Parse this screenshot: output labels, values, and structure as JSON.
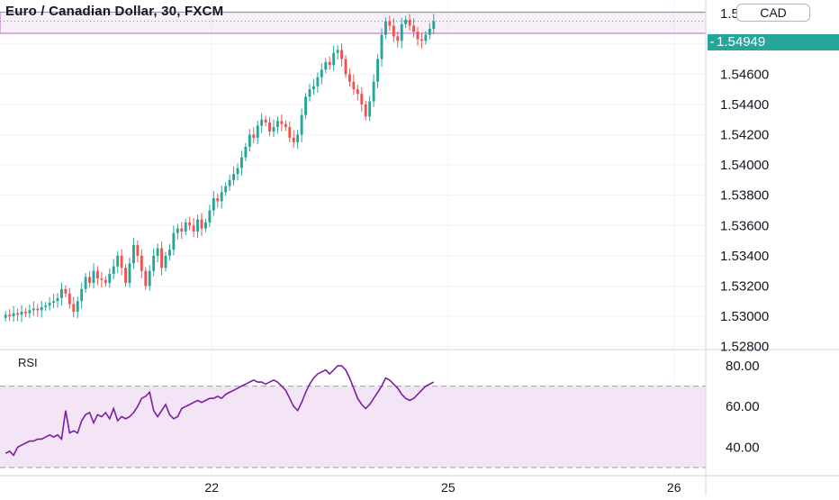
{
  "header": {
    "title": "Euro / Canadian Dollar, 30, FXCM"
  },
  "currency_badge": "CAD",
  "last_price_label": "1.54949",
  "colors": {
    "up": "#26a69a",
    "down": "#ef5350",
    "rsi_line": "#7b1fa2",
    "rsi_band": "#f3e5f5",
    "box": "#ba68c8"
  },
  "chart_data": [
    {
      "type": "candlestick",
      "title": "Euro / Canadian Dollar, 30, FXCM",
      "y_tick_labels": [
        "1.55000",
        "1.54800",
        "1.54600",
        "1.54400",
        "1.54200",
        "1.54000",
        "1.53800",
        "1.53600",
        "1.53400",
        "1.53200",
        "1.53000",
        "1.52800"
      ],
      "y_ticks": [
        1.55,
        1.548,
        1.546,
        1.544,
        1.542,
        1.54,
        1.538,
        1.536,
        1.534,
        1.532,
        1.53,
        1.528
      ],
      "ylim": [
        1.5278,
        1.5509
      ],
      "x_tick_labels": [
        "22",
        "25",
        "26"
      ],
      "x_tick_positions": [
        60,
        127,
        191
      ],
      "xlim": [
        0,
        200
      ],
      "last_price": 1.54949,
      "range_box": {
        "top": 1.5501,
        "bottom": 1.5487,
        "from_index": 0
      },
      "closes": [
        1.5301,
        1.53,
        1.5302,
        1.5301,
        1.5303,
        1.5302,
        1.5304,
        1.5305,
        1.5304,
        1.5306,
        1.5307,
        1.5309,
        1.531,
        1.5312,
        1.5318,
        1.5315,
        1.5308,
        1.5303,
        1.531,
        1.5318,
        1.5326,
        1.5322,
        1.533,
        1.5325,
        1.5324,
        1.5322,
        1.5328,
        1.5333,
        1.534,
        1.5332,
        1.5322,
        1.5335,
        1.5347,
        1.534,
        1.533,
        1.532,
        1.533,
        1.534,
        1.5345,
        1.5332,
        1.534,
        1.5344,
        1.5355,
        1.5358,
        1.5356,
        1.5362,
        1.536,
        1.5356,
        1.5364,
        1.5358,
        1.5362,
        1.537,
        1.5378,
        1.5376,
        1.5382,
        1.5386,
        1.539,
        1.5394,
        1.5398,
        1.5405,
        1.5412,
        1.542,
        1.5418,
        1.5426,
        1.543,
        1.5428,
        1.5422,
        1.5425,
        1.5429,
        1.5427,
        1.5425,
        1.5418,
        1.5415,
        1.542,
        1.5433,
        1.5445,
        1.545,
        1.5452,
        1.5458,
        1.5463,
        1.5468,
        1.5466,
        1.5474,
        1.5476,
        1.547,
        1.546,
        1.5455,
        1.545,
        1.5447,
        1.544,
        1.5432,
        1.5442,
        1.5455,
        1.547,
        1.5486,
        1.5495,
        1.5492,
        1.5485,
        1.5482,
        1.5493,
        1.5496,
        1.5492,
        1.5488,
        1.5483,
        1.5482,
        1.5486,
        1.549,
        1.5495
      ],
      "rsi": {
        "label": "RSI",
        "y_tick_labels": [
          "80.00",
          "60.00",
          "40.00"
        ],
        "y_ticks": [
          80,
          60,
          40
        ],
        "ylim": [
          26,
          88
        ],
        "band": [
          30,
          70
        ],
        "values": [
          37,
          38,
          36,
          40,
          41,
          42,
          43,
          43,
          44,
          44,
          45,
          46,
          45,
          46,
          44,
          58,
          47,
          48,
          47,
          53,
          56,
          57,
          52,
          56,
          55,
          57,
          54,
          59,
          53,
          55,
          54,
          55,
          57,
          60,
          64,
          65,
          67,
          58,
          55,
          58,
          61,
          56,
          54,
          55,
          59,
          60,
          61,
          62,
          63,
          62,
          63,
          64,
          64,
          65,
          64,
          66,
          67,
          68,
          69,
          70,
          71,
          72,
          73,
          72,
          72,
          71,
          72,
          73,
          72,
          70,
          68,
          64,
          60,
          58,
          62,
          67,
          71,
          74,
          76,
          77,
          78,
          76,
          78,
          80,
          80,
          78,
          74,
          69,
          64,
          61,
          59,
          61,
          64,
          67,
          70,
          74,
          73,
          71,
          69,
          66,
          64,
          63,
          64,
          66,
          68,
          70,
          71,
          72
        ]
      }
    }
  ]
}
